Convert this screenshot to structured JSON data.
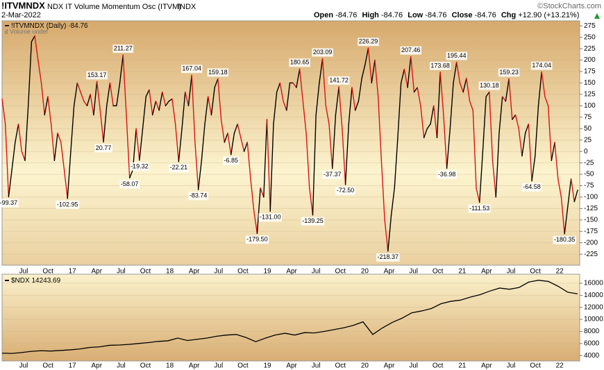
{
  "header": {
    "symbol": "!ITVMNDX",
    "description": "NDX IT Volume Momentum Osc (ITVM)",
    "exchange": "INDX",
    "date": "2-Mar-2022",
    "credit": "©StockCharts.com",
    "open_label": "Open",
    "open": -84.76,
    "high_label": "High",
    "high": -84.76,
    "low_label": "Low",
    "low": -84.76,
    "close_label": "Close",
    "close": -84.76,
    "chg_label": "Chg",
    "chg": "+12.90 (+13.21%)"
  },
  "x_axis_labels": [
    "Jul",
    "Oct",
    "17",
    "Apr",
    "Jul",
    "Oct",
    "18",
    "Apr",
    "Jul",
    "Oct",
    "19",
    "Apr",
    "Jul",
    "Oct",
    "20",
    "Apr",
    "Jul",
    "Oct",
    "21",
    "Apr",
    "Jul",
    "Oct",
    "22"
  ],
  "chart_data": [
    {
      "type": "line",
      "legend_suffix": "(Daily)",
      "volume_note": "Volume undef",
      "rising_color": "#000000",
      "falling_color": "#dd1111",
      "ylim": [
        -249,
        286
      ],
      "yticks": [
        275,
        250,
        225,
        200,
        175,
        150,
        125,
        100,
        75,
        50,
        25,
        0,
        -25,
        -50,
        -75,
        -100,
        -125,
        -150,
        -175,
        -200,
        -225
      ],
      "grid": true,
      "series": [
        {
          "name": "!ITVMNDX",
          "values": [
            115,
            60,
            -99.37,
            -40,
            20,
            60,
            0,
            -20,
            100,
            240,
            253,
            200,
            150,
            80,
            120,
            60,
            -20,
            40,
            20,
            -40,
            -102.95,
            0,
            100,
            150,
            130,
            110,
            100,
            125,
            80,
            153.17,
            90,
            20.77,
            100,
            150,
            100,
            100,
            150,
            211.27,
            80,
            -58.07,
            -40,
            50,
            -19.32,
            50,
            120,
            135,
            80,
            110,
            90,
            130,
            100,
            110,
            115,
            60,
            -22.21,
            50,
            130,
            100,
            167.04,
            20,
            -83.74,
            -20,
            60,
            120,
            80,
            140,
            159.18,
            70,
            20,
            40,
            -6.85,
            40,
            60,
            30,
            0,
            20,
            -60,
            -130,
            -179.5,
            -80,
            -100,
            70,
            -131,
            60,
            130,
            150,
            110,
            90,
            150,
            150,
            140,
            180.65,
            110,
            40,
            -80,
            -139.25,
            80,
            150,
            203.09,
            100,
            60,
            -37.37,
            80,
            141.72,
            50,
            -72.5,
            60,
            140,
            90,
            110,
            160,
            190,
            226.29,
            150,
            200,
            120,
            -20,
            -150,
            -218.37,
            -140,
            -80,
            30,
            150,
            180,
            140,
            207.46,
            130,
            140,
            100,
            30,
            50,
            60,
            100,
            30,
            173.68,
            80,
            -36.98,
            50,
            150,
            195.44,
            150,
            130,
            160,
            110,
            90,
            -80,
            -111.53,
            0,
            120,
            130.18,
            -20,
            -100,
            40,
            120,
            110,
            159.23,
            70,
            80,
            50,
            -10,
            40,
            60,
            -64.58,
            -10,
            100,
            174.04,
            120,
            100,
            -20,
            20,
            -60,
            -100,
            -180.35,
            -120,
            -60,
            -110,
            -84.76
          ],
          "value_labels": [
            null,
            null,
            "-99.37",
            null,
            null,
            null,
            null,
            null,
            null,
            null,
            null,
            null,
            null,
            null,
            null,
            null,
            null,
            null,
            null,
            null,
            "-102.95",
            null,
            null,
            null,
            null,
            null,
            null,
            null,
            null,
            "153.17",
            null,
            "20.77",
            null,
            null,
            null,
            null,
            null,
            "211.27",
            null,
            "-58.07",
            null,
            null,
            "-19.32",
            null,
            null,
            null,
            null,
            null,
            null,
            null,
            null,
            null,
            null,
            null,
            "-22.21",
            null,
            null,
            null,
            "167.04",
            null,
            "-83.74",
            null,
            null,
            null,
            null,
            null,
            "159.18",
            null,
            null,
            null,
            "-6.85",
            null,
            null,
            null,
            null,
            null,
            null,
            null,
            "-179.50",
            null,
            null,
            null,
            "-131.00",
            null,
            null,
            null,
            null,
            null,
            null,
            null,
            null,
            "180.65",
            null,
            null,
            null,
            "-139.25",
            null,
            null,
            "203.09",
            null,
            null,
            "-37.37",
            null,
            "141.72",
            null,
            "-72.50",
            null,
            null,
            null,
            null,
            null,
            null,
            "226.29",
            null,
            null,
            null,
            null,
            null,
            "-218.37",
            null,
            null,
            null,
            null,
            null,
            null,
            "207.46",
            null,
            null,
            null,
            null,
            null,
            null,
            null,
            null,
            "173.68",
            null,
            "-36.98",
            null,
            null,
            "195.44",
            null,
            null,
            null,
            null,
            null,
            null,
            "-111.53",
            null,
            null,
            "130.18",
            null,
            null,
            null,
            null,
            null,
            "159.23",
            null,
            null,
            null,
            null,
            null,
            null,
            "-64.58",
            null,
            null,
            "174.04",
            null,
            null,
            null,
            null,
            null,
            null,
            "-180.35",
            null,
            null,
            null,
            null
          ]
        }
      ]
    },
    {
      "type": "line",
      "color": "#000000",
      "ylim": [
        3100,
        17500
      ],
      "yticks": [
        16000,
        14000,
        12000,
        10000,
        8000,
        6000,
        4000
      ],
      "grid": true,
      "series": [
        {
          "name": "$NDX",
          "values": [
            4400,
            4350,
            4500,
            4700,
            4800,
            4750,
            4850,
            4950,
            5100,
            5350,
            5450,
            5700,
            5750,
            5850,
            6000,
            6150,
            6350,
            6450,
            6900,
            6500,
            6700,
            6900,
            7200,
            7400,
            7500,
            7000,
            6300,
            6900,
            7400,
            7700,
            7400,
            7800,
            7750,
            8000,
            8300,
            8600,
            9000,
            9600,
            7500,
            8600,
            9500,
            10200,
            11100,
            11400,
            11800,
            12600,
            13000,
            13200,
            13700,
            14100,
            14700,
            15200,
            15000,
            15300,
            16200,
            16500,
            16300,
            15500,
            14500,
            14243.69
          ]
        }
      ]
    }
  ]
}
